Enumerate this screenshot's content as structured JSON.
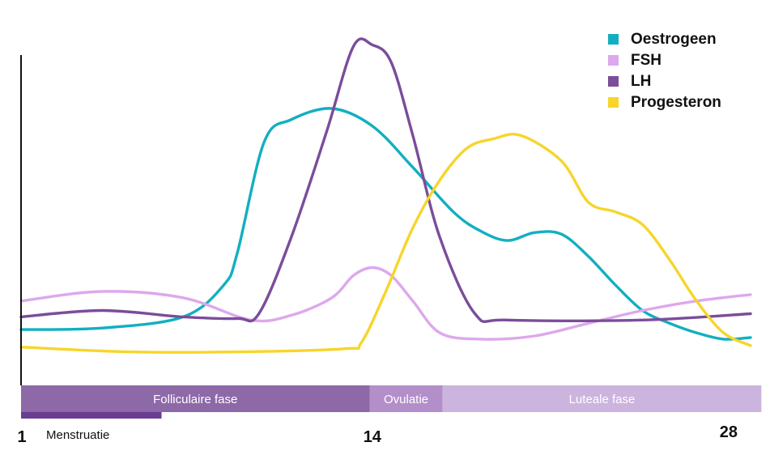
{
  "chart_data": {
    "type": "line",
    "title": "",
    "xlabel": "",
    "ylabel": "",
    "xlim": [
      1,
      28
    ],
    "ylim": [
      0,
      100
    ],
    "x_ticks": [
      {
        "day": 1,
        "label": "1"
      },
      {
        "day": 14,
        "label": "14"
      },
      {
        "day": 28,
        "label": "28"
      }
    ],
    "series": [
      {
        "name": "Oestrogeen",
        "color": "#12AFC0",
        "points": [
          [
            1,
            16
          ],
          [
            4,
            16.5
          ],
          [
            7,
            20
          ],
          [
            8.5,
            30
          ],
          [
            9,
            40
          ],
          [
            10,
            75
          ],
          [
            11,
            82
          ],
          [
            12.5,
            85.5
          ],
          [
            14,
            80
          ],
          [
            15.5,
            67
          ],
          [
            17,
            53
          ],
          [
            18,
            47
          ],
          [
            19,
            44
          ],
          [
            20,
            46.5
          ],
          [
            21,
            46
          ],
          [
            22,
            39
          ],
          [
            23,
            30
          ],
          [
            24,
            22
          ],
          [
            25,
            18
          ],
          [
            26,
            15
          ],
          [
            27,
            13
          ],
          [
            28,
            13.5
          ]
        ]
      },
      {
        "name": "FSH",
        "color": "#DDA8EC",
        "points": [
          [
            1,
            25
          ],
          [
            4,
            28
          ],
          [
            7,
            26
          ],
          [
            9.5,
            19
          ],
          [
            11,
            20.5
          ],
          [
            12.5,
            26
          ],
          [
            13.3,
            33
          ],
          [
            14,
            35.5
          ],
          [
            14.7,
            33
          ],
          [
            15.5,
            25
          ],
          [
            16.5,
            15
          ],
          [
            18,
            13
          ],
          [
            20,
            14
          ],
          [
            22,
            18
          ],
          [
            24,
            22
          ],
          [
            26,
            25
          ],
          [
            28,
            27
          ]
        ]
      },
      {
        "name": "LH",
        "color": "#7B4D9A",
        "points": [
          [
            1,
            20
          ],
          [
            4,
            22
          ],
          [
            7,
            20
          ],
          [
            9,
            19.5
          ],
          [
            9.8,
            21
          ],
          [
            11,
            45
          ],
          [
            12.3,
            78
          ],
          [
            13.3,
            105
          ],
          [
            14,
            105.5
          ],
          [
            14.7,
            100
          ],
          [
            15.5,
            77
          ],
          [
            16.5,
            45
          ],
          [
            17.8,
            21
          ],
          [
            19,
            19
          ],
          [
            24,
            19
          ],
          [
            28,
            21
          ]
        ]
      },
      {
        "name": "Progesteron",
        "color": "#F7D52B",
        "points": [
          [
            1,
            10.5
          ],
          [
            5,
            9
          ],
          [
            9,
            9
          ],
          [
            13,
            10
          ],
          [
            13.6,
            12
          ],
          [
            14.5,
            28
          ],
          [
            15.5,
            48
          ],
          [
            16.5,
            63
          ],
          [
            17.5,
            73
          ],
          [
            18.5,
            76
          ],
          [
            19.5,
            77
          ],
          [
            21,
            69
          ],
          [
            22,
            56
          ],
          [
            23,
            53
          ],
          [
            24,
            49
          ],
          [
            25,
            38
          ],
          [
            26,
            25
          ],
          [
            27,
            15
          ],
          [
            28,
            11
          ]
        ]
      }
    ],
    "phases": [
      {
        "label": "Folliculaire fase",
        "start": 1,
        "end": 13.9,
        "color": "#8D69A8"
      },
      {
        "label": "Ovulatie",
        "start": 13.9,
        "end": 16.6,
        "color": "#B38FC9"
      },
      {
        "label": "Luteale fase",
        "start": 16.6,
        "end": 28.4,
        "color": "#CBB5DE"
      }
    ],
    "menstruation": {
      "label": "Menstruatie",
      "start": 1,
      "end": 6.2,
      "color": "#6A3D90"
    },
    "legend_position": "top-right"
  }
}
